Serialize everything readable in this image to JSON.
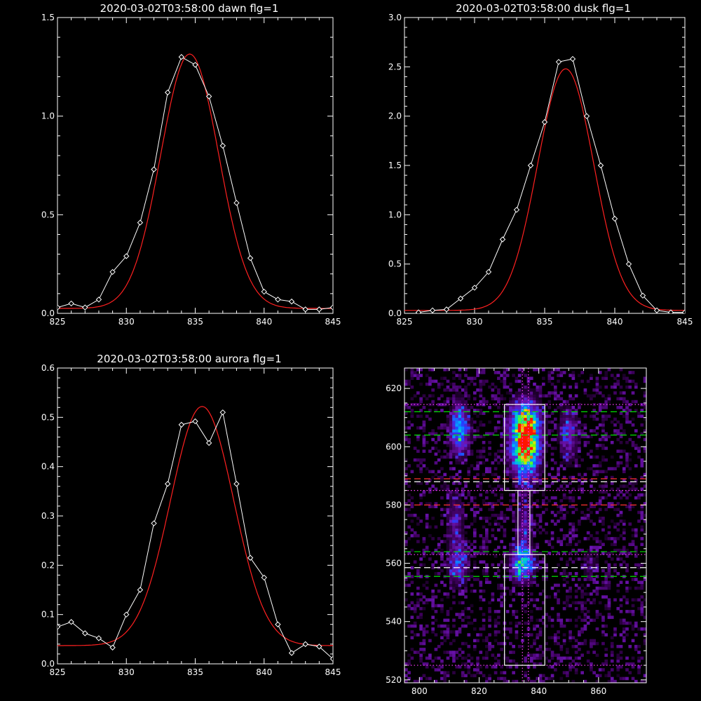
{
  "colors": {
    "background": "#000000",
    "axis": "#ffffff",
    "data": "#ffffff",
    "fit": "#ff2020",
    "green": "#00e000",
    "red": "#ff3030",
    "magenta": "#ff40ff"
  },
  "chart_data": [
    {
      "type": "line",
      "title": "2020-03-02T03:58:00 dawn flg=1",
      "xlim": [
        825,
        845
      ],
      "ylim": [
        0,
        1.5
      ],
      "xticks": [
        "825",
        "830",
        "835",
        "840",
        "845"
      ],
      "yticks": [
        "0.0",
        "0.5",
        "1.0",
        "1.5"
      ],
      "series": [
        {
          "style": "white-diamonds",
          "x": [
            825,
            826,
            827,
            828,
            829,
            830,
            831,
            832,
            833,
            834,
            835,
            836,
            837,
            838,
            839,
            840,
            841,
            842,
            843,
            844,
            845
          ],
          "values": [
            0.03,
            0.05,
            0.03,
            0.07,
            0.21,
            0.29,
            0.46,
            0.73,
            1.12,
            1.3,
            1.26,
            1.1,
            0.85,
            0.56,
            0.28,
            0.11,
            0.07,
            0.06,
            0.02,
            0.02,
            0.03
          ]
        },
        {
          "style": "red-fit",
          "gaussian": {
            "center": 834.6,
            "amplitude": 1.29,
            "sigma": 2.1,
            "offset": 0.025
          }
        }
      ]
    },
    {
      "type": "line",
      "title": "2020-03-02T03:58:00 dusk flg=1",
      "xlim": [
        825,
        845
      ],
      "ylim": [
        0,
        3.0
      ],
      "xticks": [
        "825",
        "830",
        "835",
        "840",
        "845"
      ],
      "yticks": [
        "0.0",
        "0.5",
        "1.0",
        "1.5",
        "2.0",
        "2.5",
        "3.0"
      ],
      "series": [
        {
          "style": "white-diamonds",
          "x": [
            826,
            827,
            828,
            829,
            830,
            831,
            832,
            833,
            834,
            835,
            836,
            837,
            838,
            839,
            840,
            841,
            842,
            843,
            844,
            845
          ],
          "values": [
            0.01,
            0.03,
            0.04,
            0.15,
            0.26,
            0.42,
            0.75,
            1.05,
            1.5,
            1.94,
            2.55,
            2.58,
            2.0,
            1.5,
            0.96,
            0.5,
            0.18,
            0.03,
            0.01,
            0.01
          ]
        },
        {
          "style": "red-fit",
          "gaussian": {
            "center": 836.5,
            "amplitude": 2.45,
            "sigma": 2.0,
            "offset": 0.03
          }
        }
      ]
    },
    {
      "type": "line",
      "title": "2020-03-02T03:58:00 aurora flg=1",
      "xlim": [
        825,
        845
      ],
      "ylim": [
        0,
        0.6
      ],
      "xticks": [
        "825",
        "830",
        "835",
        "840",
        "845"
      ],
      "yticks": [
        "0.0",
        "0.1",
        "0.2",
        "0.3",
        "0.4",
        "0.5",
        "0.6"
      ],
      "series": [
        {
          "style": "white-diamonds",
          "x": [
            825,
            826,
            827,
            828,
            829,
            830,
            831,
            832,
            833,
            834,
            835,
            836,
            837,
            838,
            839,
            840,
            841,
            842,
            843,
            844,
            845
          ],
          "values": [
            0.075,
            0.085,
            0.062,
            0.052,
            0.033,
            0.1,
            0.15,
            0.285,
            0.365,
            0.485,
            0.492,
            0.448,
            0.51,
            0.365,
            0.215,
            0.175,
            0.08,
            0.022,
            0.04,
            0.035,
            0.01
          ]
        },
        {
          "style": "red-fit",
          "gaussian": {
            "center": 835.5,
            "amplitude": 0.485,
            "sigma": 2.3,
            "offset": 0.037
          }
        }
      ]
    },
    {
      "type": "heatmap",
      "xlim": [
        795,
        876
      ],
      "ylim": [
        519,
        627
      ],
      "xticks": [
        "800",
        "820",
        "840",
        "860"
      ],
      "yticks": [
        "520",
        "540",
        "560",
        "580",
        "600",
        "620"
      ],
      "blobs": [
        {
          "x": 835.5,
          "y": 606,
          "sx": 3.2,
          "sy": 6,
          "amp": 1.0
        },
        {
          "x": 835.5,
          "y": 596,
          "sx": 3.0,
          "sy": 6,
          "amp": 0.55
        },
        {
          "x": 813.5,
          "y": 606,
          "sx": 2.0,
          "sy": 6,
          "amp": 0.55
        },
        {
          "x": 813.0,
          "y": 560,
          "sx": 2.2,
          "sy": 5,
          "amp": 0.35
        },
        {
          "x": 812.0,
          "y": 575,
          "sx": 2.0,
          "sy": 6,
          "amp": 0.22
        },
        {
          "x": 834.5,
          "y": 560,
          "sx": 2.6,
          "sy": 4,
          "amp": 0.6
        },
        {
          "x": 835.0,
          "y": 573,
          "sx": 1.8,
          "sy": 6,
          "amp": 0.25
        },
        {
          "x": 850.0,
          "y": 604,
          "sx": 2.2,
          "sy": 6,
          "amp": 0.3
        },
        {
          "x": 857.0,
          "y": 560,
          "sx": 2.0,
          "sy": 4,
          "amp": 0.12
        }
      ],
      "hlines": [
        {
          "y": 612,
          "color": "green",
          "dash": "dashed"
        },
        {
          "y": 604,
          "color": "green",
          "dash": "dashed"
        },
        {
          "y": 589,
          "color": "red",
          "dash": "dashed"
        },
        {
          "y": 588,
          "color": "white",
          "dash": "dashed"
        },
        {
          "y": 580,
          "color": "red",
          "dash": "dashed"
        },
        {
          "y": 564,
          "color": "green",
          "dash": "dashed"
        },
        {
          "y": 558.5,
          "color": "white",
          "dash": "dashed"
        },
        {
          "y": 555.5,
          "color": "green",
          "dash": "dashed"
        },
        {
          "y": 614.5,
          "color": "magenta",
          "dash": "dotted"
        },
        {
          "y": 585,
          "color": "magenta",
          "dash": "dotted"
        },
        {
          "y": 563,
          "color": "magenta",
          "dash": "dotted"
        },
        {
          "y": 525,
          "color": "magenta",
          "dash": "dotted"
        }
      ],
      "vlines": [
        {
          "x": 834.5,
          "color": "magenta",
          "dash": "dotted"
        },
        {
          "x": 836.5,
          "color": "magenta",
          "dash": "dotted"
        }
      ],
      "boxes": [
        {
          "x0": 828.5,
          "x1": 842.0,
          "y0": 585.0,
          "y1": 614.5
        },
        {
          "x0": 833.0,
          "x1": 837.0,
          "y0": 563.0,
          "y1": 585.0
        },
        {
          "x0": 828.5,
          "x1": 842.0,
          "y0": 525.0,
          "y1": 563.0
        }
      ]
    }
  ]
}
